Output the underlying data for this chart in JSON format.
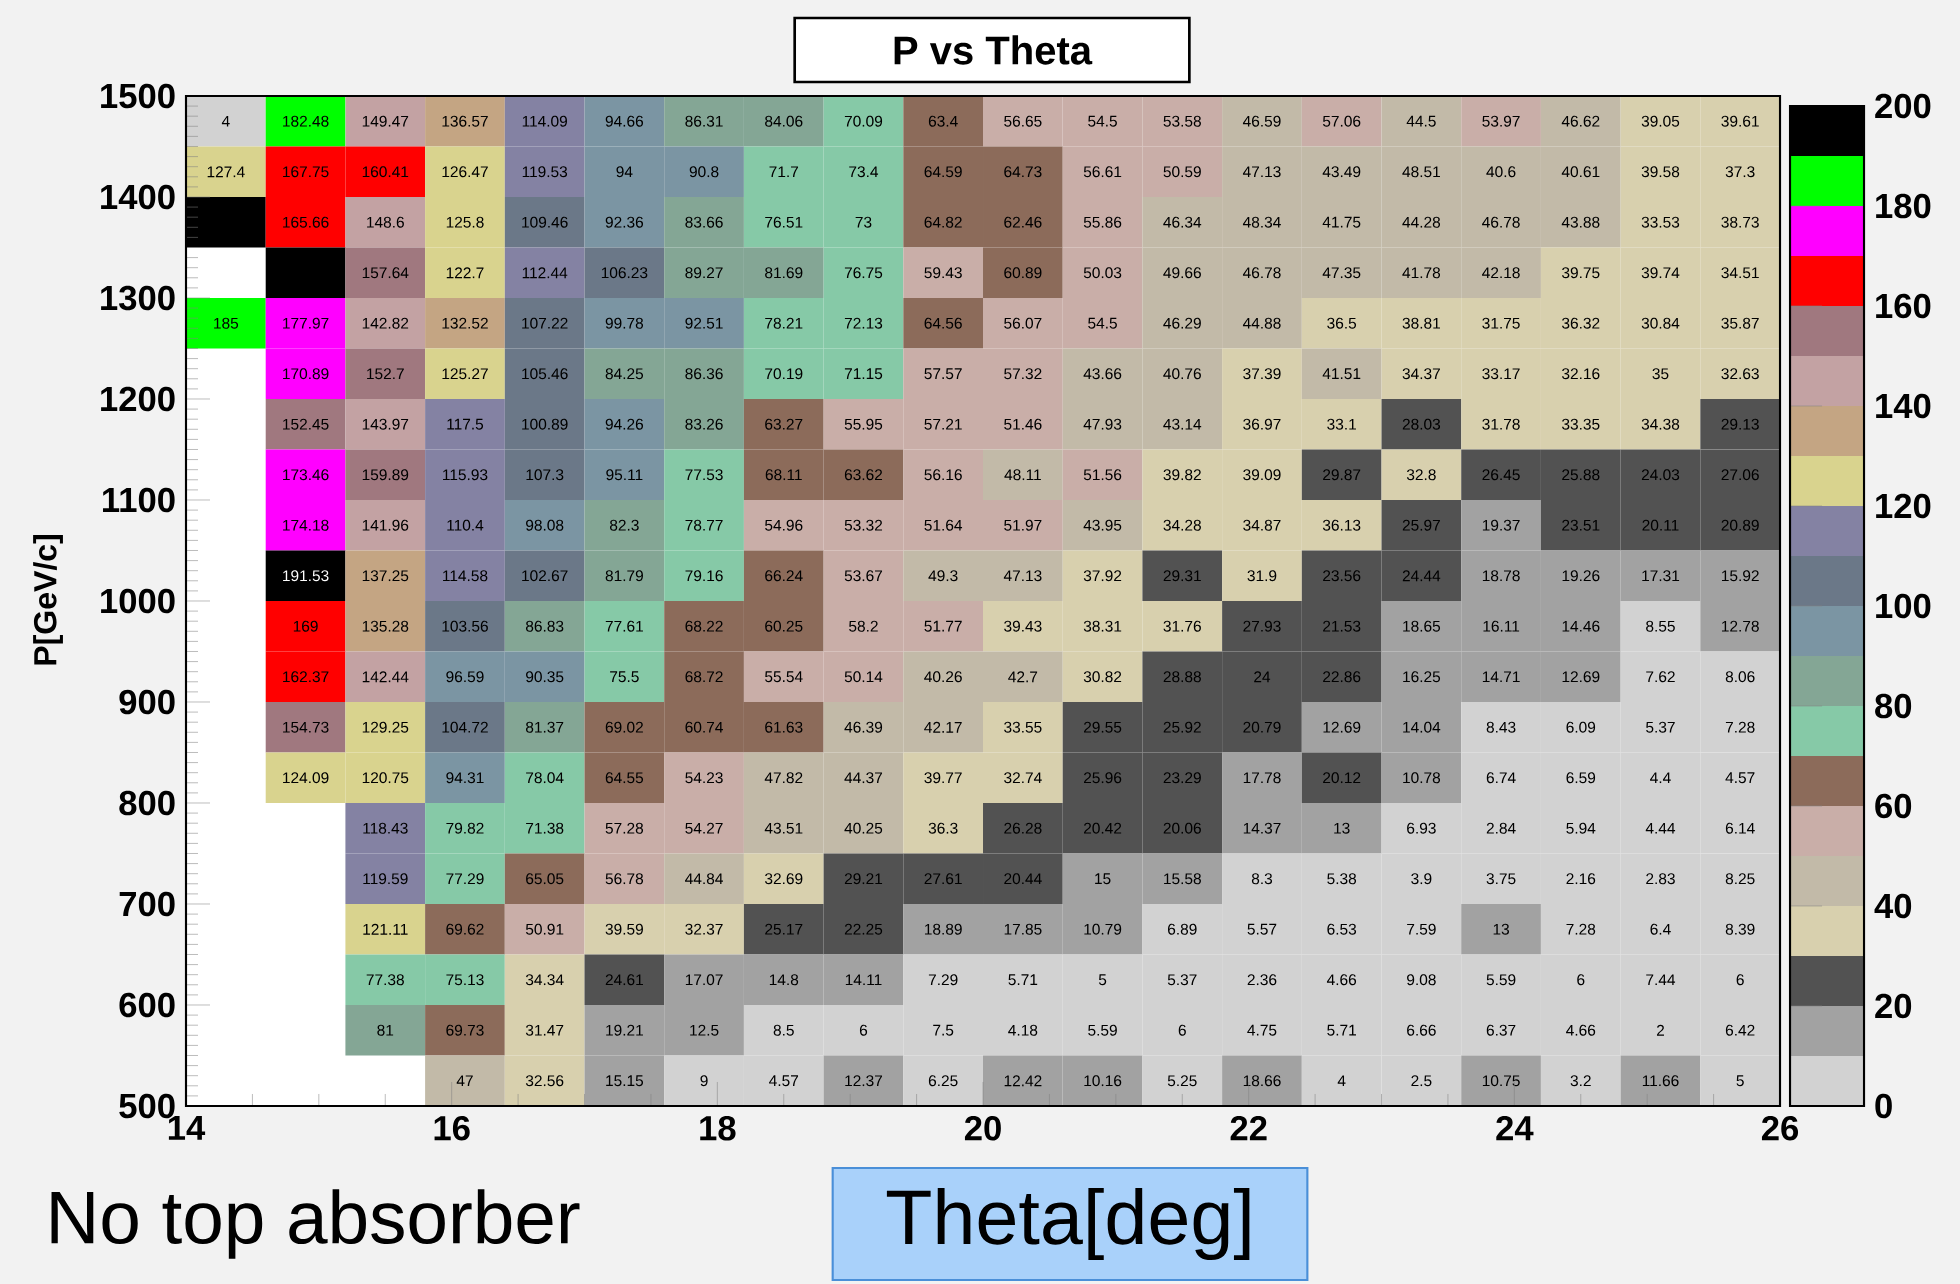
{
  "chart_data": {
    "type": "heatmap",
    "title": "P vs Theta",
    "xlabel": "Theta[deg]",
    "ylabel": "P[GeV/c]",
    "annotations": [
      "No top absorber"
    ],
    "x": [
      14.3,
      14.9,
      15.5,
      16.1,
      16.7,
      17.3,
      17.9,
      18.5,
      19.1,
      19.7,
      20.3,
      20.9,
      21.5,
      22.1,
      22.7,
      23.3,
      23.9,
      24.5,
      25.1,
      25.7
    ],
    "y": [
      1475,
      1425,
      1375,
      1325,
      1275,
      1225,
      1175,
      1125,
      1075,
      1025,
      975,
      925,
      875,
      825,
      775,
      725,
      675,
      625,
      575,
      525
    ],
    "xlim": [
      14,
      26
    ],
    "ylim": [
      500,
      1500
    ],
    "xticks": [
      14,
      16,
      18,
      20,
      22,
      24,
      26
    ],
    "yticks": [
      500,
      600,
      700,
      800,
      900,
      1000,
      1100,
      1200,
      1300,
      1400,
      1500
    ],
    "clim": [
      0,
      200
    ],
    "cticks": [
      0,
      20,
      40,
      60,
      80,
      100,
      120,
      140,
      160,
      180,
      200
    ],
    "cells": [
      [
        4,
        182.48,
        149.47,
        136.57,
        114.09,
        94.66,
        86.31,
        84.06,
        70.09,
        63.4,
        56.65,
        54.5,
        53.58,
        46.59,
        57.06,
        44.5,
        53.97,
        46.62,
        39.05,
        39.61
      ],
      [
        127.4,
        167.75,
        160.41,
        126.47,
        119.53,
        94,
        90.8,
        71.7,
        73.4,
        64.59,
        64.73,
        56.61,
        50.59,
        47.13,
        43.49,
        48.51,
        40.6,
        40.61,
        39.58,
        37.3
      ],
      [
        195,
        165.66,
        148.6,
        125.8,
        109.46,
        92.36,
        83.66,
        76.51,
        73,
        64.82,
        62.46,
        55.86,
        46.34,
        48.34,
        41.75,
        44.28,
        46.78,
        43.88,
        33.53,
        38.73
      ],
      [
        null,
        195,
        157.64,
        122.7,
        112.44,
        106.23,
        89.27,
        81.69,
        76.75,
        59.43,
        60.89,
        50.03,
        49.66,
        46.78,
        47.35,
        41.78,
        42.18,
        39.75,
        39.74,
        34.51
      ],
      [
        185,
        177.97,
        142.82,
        132.52,
        107.22,
        99.78,
        92.51,
        78.21,
        72.13,
        64.56,
        56.07,
        54.5,
        46.29,
        44.88,
        36.5,
        38.81,
        31.75,
        36.32,
        30.84,
        35.87
      ],
      [
        null,
        170.89,
        152.7,
        125.27,
        105.46,
        84.25,
        86.36,
        70.19,
        71.15,
        57.57,
        57.32,
        43.66,
        40.76,
        37.39,
        41.51,
        34.37,
        33.17,
        32.16,
        35,
        32.63
      ],
      [
        null,
        152.45,
        143.97,
        117.5,
        100.89,
        94.26,
        83.26,
        63.27,
        55.95,
        57.21,
        51.46,
        47.93,
        43.14,
        36.97,
        33.1,
        28.03,
        31.78,
        33.35,
        34.38,
        29.13
      ],
      [
        null,
        173.46,
        159.89,
        115.93,
        107.3,
        95.11,
        77.53,
        68.11,
        63.62,
        56.16,
        48.11,
        51.56,
        39.82,
        39.09,
        29.87,
        32.8,
        26.45,
        25.88,
        24.03,
        27.06
      ],
      [
        null,
        174.18,
        141.96,
        110.4,
        98.08,
        82.3,
        78.77,
        54.96,
        53.32,
        51.64,
        51.97,
        43.95,
        34.28,
        34.87,
        36.13,
        25.97,
        19.37,
        23.51,
        20.11,
        20.89
      ],
      [
        null,
        191.53,
        137.25,
        114.58,
        102.67,
        81.79,
        79.16,
        66.24,
        53.67,
        49.3,
        47.13,
        37.92,
        29.31,
        31.9,
        23.56,
        24.44,
        18.78,
        19.26,
        17.31,
        15.92
      ],
      [
        null,
        169,
        135.28,
        103.56,
        86.83,
        77.61,
        68.22,
        60.25,
        58.2,
        51.77,
        39.43,
        38.31,
        31.76,
        27.93,
        21.53,
        18.65,
        16.11,
        14.46,
        8.55,
        12.78
      ],
      [
        null,
        162.37,
        142.44,
        96.59,
        90.35,
        75.5,
        68.72,
        55.54,
        50.14,
        40.26,
        42.7,
        30.82,
        28.88,
        24,
        22.86,
        16.25,
        14.71,
        12.69,
        7.62,
        8.06
      ],
      [
        null,
        154.73,
        129.25,
        104.72,
        81.37,
        69.02,
        60.74,
        61.63,
        46.39,
        42.17,
        33.55,
        29.55,
        25.92,
        20.79,
        12.69,
        14.04,
        8.43,
        6.09,
        5.37,
        7.28
      ],
      [
        null,
        124.09,
        120.75,
        94.31,
        78.04,
        64.55,
        54.23,
        47.82,
        44.37,
        39.77,
        32.74,
        25.96,
        23.29,
        17.78,
        20.12,
        10.78,
        6.74,
        6.59,
        4.4,
        4.57
      ],
      [
        null,
        null,
        118.43,
        79.82,
        71.38,
        57.28,
        54.27,
        43.51,
        40.25,
        36.3,
        26.28,
        20.42,
        20.06,
        14.37,
        13,
        6.93,
        2.84,
        5.94,
        4.44,
        6.14
      ],
      [
        null,
        null,
        119.59,
        77.29,
        65.05,
        56.78,
        44.84,
        32.69,
        29.21,
        27.61,
        20.44,
        15,
        15.58,
        8.3,
        5.38,
        3.9,
        3.75,
        2.16,
        2.83,
        8.25
      ],
      [
        null,
        null,
        121.11,
        69.62,
        50.91,
        39.59,
        32.37,
        25.17,
        22.25,
        18.89,
        17.85,
        10.79,
        6.89,
        5.57,
        6.53,
        7.59,
        13,
        7.28,
        6.4,
        8.39
      ],
      [
        null,
        null,
        77.38,
        75.13,
        34.34,
        24.61,
        17.07,
        14.8,
        14.11,
        7.29,
        5.71,
        5,
        5.37,
        2.36,
        4.66,
        9.08,
        5.59,
        6,
        7.44,
        6
      ],
      [
        null,
        null,
        81,
        69.73,
        31.47,
        19.21,
        12.5,
        8.5,
        6,
        7.5,
        4.18,
        5.59,
        6,
        4.75,
        5.71,
        6.66,
        6.37,
        4.66,
        2,
        6.42
      ],
      [
        null,
        null,
        null,
        47,
        32.56,
        15.15,
        9,
        4.57,
        12.37,
        6.25,
        12.42,
        10.16,
        5.25,
        18.66,
        4,
        2.5,
        10.75,
        3.2,
        11.66,
        5
      ]
    ],
    "cell_labels": [
      [
        "4",
        "182.48",
        "149.47",
        "136.57",
        "114.09",
        "94.66",
        "86.31",
        "84.06",
        "70.09",
        "63.4",
        "56.65",
        "54.5",
        "53.58",
        "46.59",
        "57.06",
        "44.5",
        "53.97",
        "46.62",
        "39.05",
        "39.61"
      ],
      [
        "127.4",
        "167.75",
        "160.41",
        "126.47",
        "119.53",
        "94",
        "90.8",
        "71.7",
        "73.4",
        "64.59",
        "64.73",
        "56.61",
        "50.59",
        "47.13",
        "43.49",
        "48.51",
        "40.6",
        "40.61",
        "39.58",
        "37.3"
      ],
      [
        null,
        "165.66",
        "148.6",
        "125.8",
        "109.46",
        "92.36",
        "83.66",
        "76.51",
        "73",
        "64.82",
        "62.46",
        "55.86",
        "46.34",
        "48.34",
        "41.75",
        "44.28",
        "46.78",
        "43.88",
        "33.53",
        "38.73"
      ],
      [
        null,
        null,
        "157.64",
        "122.7",
        "112.44",
        "106.23",
        "89.27",
        "81.69",
        "76.75",
        "59.43",
        "60.89",
        "50.03",
        "49.66",
        "46.78",
        "47.35",
        "41.78",
        "42.18",
        "39.75",
        "39.74",
        "34.51"
      ],
      [
        "185",
        "177.97",
        "142.82",
        "132.52",
        "107.22",
        "99.78",
        "92.51",
        "78.21",
        "72.13",
        "64.56",
        "56.07",
        "54.5",
        "46.29",
        "44.88",
        "36.5",
        "38.81",
        "31.75",
        "36.32",
        "30.84",
        "35.87"
      ],
      [
        null,
        "170.89",
        "152.7",
        "125.27",
        "105.46",
        "84.25",
        "86.36",
        "70.19",
        "71.15",
        "57.57",
        "57.32",
        "43.66",
        "40.76",
        "37.39",
        "41.51",
        "34.37",
        "33.17",
        "32.16",
        "35",
        "32.63"
      ],
      [
        null,
        "152.45",
        "143.97",
        "117.5",
        "100.89",
        "94.26",
        "83.26",
        "63.27",
        "55.95",
        "57.21",
        "51.46",
        "47.93",
        "43.14",
        "36.97",
        "33.1",
        "28.03",
        "31.78",
        "33.35",
        "34.38",
        "29.13"
      ],
      [
        null,
        "173.46",
        "159.89",
        "115.93",
        "107.3",
        "95.11",
        "77.53",
        "68.11",
        "63.62",
        "56.16",
        "48.11",
        "51.56",
        "39.82",
        "39.09",
        "29.87",
        "32.8",
        "26.45",
        "25.88",
        "24.03",
        "27.06"
      ],
      [
        null,
        "174.18",
        "141.96",
        "110.4",
        "98.08",
        "82.3",
        "78.77",
        "54.96",
        "53.32",
        "51.64",
        "51.97",
        "43.95",
        "34.28",
        "34.87",
        "36.13",
        "25.97",
        "19.37",
        "23.51",
        "20.11",
        "20.89"
      ],
      [
        null,
        "191.53",
        "137.25",
        "114.58",
        "102.67",
        "81.79",
        "79.16",
        "66.24",
        "53.67",
        "49.3",
        "47.13",
        "37.92",
        "29.31",
        "31.9",
        "23.56",
        "24.44",
        "18.78",
        "19.26",
        "17.31",
        "15.92"
      ],
      [
        null,
        "169",
        "135.28",
        "103.56",
        "86.83",
        "77.61",
        "68.22",
        "60.25",
        "58.2",
        "51.77",
        "39.43",
        "38.31",
        "31.76",
        "27.93",
        "21.53",
        "18.65",
        "16.11",
        "14.46",
        "8.55",
        "12.78"
      ],
      [
        null,
        "162.37",
        "142.44",
        "96.59",
        "90.35",
        "75.5",
        "68.72",
        "55.54",
        "50.14",
        "40.26",
        "42.7",
        "30.82",
        "28.88",
        "24",
        "22.86",
        "16.25",
        "14.71",
        "12.69",
        "7.62",
        "8.06"
      ],
      [
        null,
        "154.73",
        "129.25",
        "104.72",
        "81.37",
        "69.02",
        "60.74",
        "61.63",
        "46.39",
        "42.17",
        "33.55",
        "29.55",
        "25.92",
        "20.79",
        "12.69",
        "14.04",
        "8.43",
        "6.09",
        "5.37",
        "7.28"
      ],
      [
        null,
        "124.09",
        "120.75",
        "94.31",
        "78.04",
        "64.55",
        "54.23",
        "47.82",
        "44.37",
        "39.77",
        "32.74",
        "25.96",
        "23.29",
        "17.78",
        "20.12",
        "10.78",
        "6.74",
        "6.59",
        "4.4",
        "4.57"
      ],
      [
        null,
        null,
        "118.43",
        "79.82",
        "71.38",
        "57.28",
        "54.27",
        "43.51",
        "40.25",
        "36.3",
        "26.28",
        "20.42",
        "20.06",
        "14.37",
        "13",
        "6.93",
        "2.84",
        "5.94",
        "4.44",
        "6.14"
      ],
      [
        null,
        null,
        "119.59",
        "77.29",
        "65.05",
        "56.78",
        "44.84",
        "32.69",
        "29.21",
        "27.61",
        "20.44",
        "15",
        "15.58",
        "8.3",
        "5.38",
        "3.9",
        "3.75",
        "2.16",
        "2.83",
        "8.25"
      ],
      [
        null,
        null,
        "121.11",
        "69.62",
        "50.91",
        "39.59",
        "32.37",
        "25.17",
        "22.25",
        "18.89",
        "17.85",
        "10.79",
        "6.89",
        "5.57",
        "6.53",
        "7.59",
        "13",
        "7.28",
        "6.4",
        "8.39"
      ],
      [
        null,
        null,
        "77.38",
        "75.13",
        "34.34",
        "24.61",
        "17.07",
        "14.8",
        "14.11",
        "7.29",
        "5.71",
        "5",
        "5.37",
        "2.36",
        "4.66",
        "9.08",
        "5.59",
        "6",
        "7.44",
        "6"
      ],
      [
        null,
        null,
        "81",
        "69.73",
        "31.47",
        "19.21",
        "12.5",
        "8.5",
        "6",
        "7.5",
        "4.18",
        "5.59",
        "6",
        "4.75",
        "5.71",
        "6.66",
        "6.37",
        "4.66",
        "2",
        "6.42"
      ],
      [
        null,
        null,
        null,
        "47",
        "32.56",
        "15.15",
        "9",
        "4.57",
        "12.37",
        "6.25",
        "12.42",
        "10.16",
        "5.25",
        "18.66",
        "4",
        "2.5",
        "10.75",
        "3.2",
        "11.66",
        "5"
      ]
    ]
  }
}
